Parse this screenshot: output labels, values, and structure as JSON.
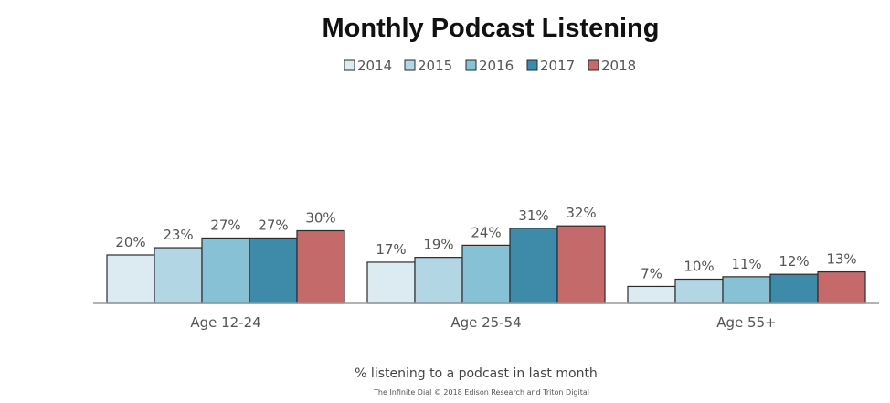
{
  "chart_data": {
    "type": "bar",
    "title": "Monthly Podcast Listening",
    "categories": [
      "Age 12-24",
      "Age 25-54",
      "Age 55+"
    ],
    "series": [
      {
        "name": "2014",
        "values": [
          20,
          17,
          7
        ],
        "labels": [
          "20%",
          "17%",
          "7%"
        ],
        "color": "#dcebf2"
      },
      {
        "name": "2015",
        "values": [
          23,
          19,
          10
        ],
        "labels": [
          "23%",
          "19%",
          "10%"
        ],
        "color": "#b3d6e5"
      },
      {
        "name": "2016",
        "values": [
          27,
          24,
          11
        ],
        "labels": [
          "27%",
          "24%",
          "11%"
        ],
        "color": "#86c1d6"
      },
      {
        "name": "2017",
        "values": [
          27,
          31,
          12
        ],
        "labels": [
          "27%",
          "31%",
          "12%"
        ],
        "color": "#3d8ba8"
      },
      {
        "name": "2018",
        "values": [
          30,
          32,
          13
        ],
        "labels": [
          "30%",
          "32%",
          "13%"
        ],
        "color": "#c46a6a"
      }
    ],
    "xlabel": "% listening to a podcast in last month",
    "ylabel": "",
    "ylim": [
      0,
      32
    ],
    "legend": "top-center",
    "grid": false
  },
  "footer": {
    "credit": "The Infinite Dial   © 2018 Edison Research and Triton Digital"
  }
}
